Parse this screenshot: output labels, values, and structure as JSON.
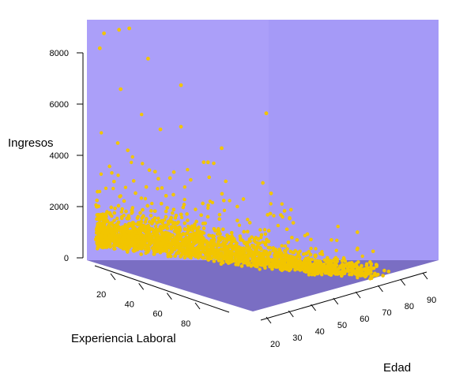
{
  "chart_data": {
    "type": "scatter",
    "dimensions": 3,
    "title": "",
    "zlabel": "Ingresos",
    "xlabel": "Experiencia Laboral",
    "ylabel": "Edad",
    "zlim": [
      0,
      9200
    ],
    "xlim": [
      0,
      95
    ],
    "ylim": [
      15,
      95
    ],
    "z_ticks": [
      "0",
      "2000",
      "4000",
      "6000",
      "8000"
    ],
    "x_ticks": [
      "20",
      "40",
      "60",
      "80"
    ],
    "y_ticks": [
      "20",
      "30",
      "40",
      "50",
      "60",
      "70",
      "80",
      "90"
    ],
    "colors": {
      "points": "#f2c500",
      "back_wall": "#a59af7",
      "side_wall": "#ab9ff9",
      "floor": "#7a6ec3"
    },
    "approximate_point_count": 5000,
    "notable_points": [
      {
        "experiencia": 5,
        "edad": 25,
        "ingresos": 9100
      },
      {
        "experiencia": 8,
        "edad": 27,
        "ingresos": 9200
      },
      {
        "experiencia": 3,
        "edad": 20,
        "ingresos": 8900
      },
      {
        "experiencia": 40,
        "edad": 62,
        "ingresos": 6400
      },
      {
        "experiencia": 2,
        "edad": 19,
        "ingresos": 8300
      },
      {
        "experiencia": 12,
        "edad": 32,
        "ingresos": 8100
      },
      {
        "experiencia": 20,
        "edad": 40,
        "ingresos": 7200
      },
      {
        "experiencia": 7,
        "edad": 24,
        "ingresos": 6800
      },
      {
        "experiencia": 15,
        "edad": 35,
        "ingresos": 5400
      },
      {
        "experiencia": 30,
        "edad": 50,
        "ingresos": 4900
      },
      {
        "experiencia": 45,
        "edad": 60,
        "ingresos": 3300
      },
      {
        "experiencia": 25,
        "edad": 48,
        "ingresos": 4300
      }
    ]
  }
}
